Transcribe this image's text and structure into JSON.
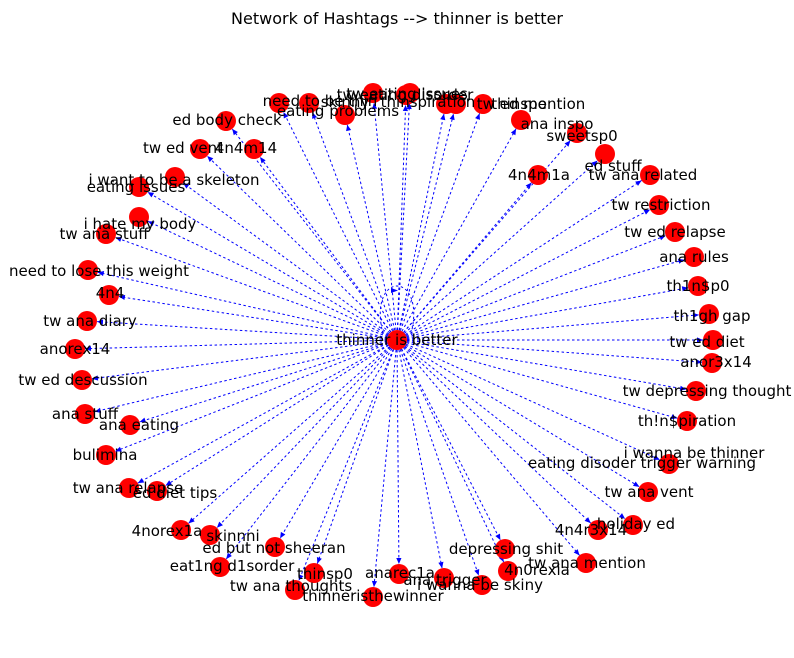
{
  "title": "Network of Hashtags --> thinner is better",
  "center": "thinner is better",
  "nodes": [
    "tw eating issues",
    "tw ed mention",
    "thinspo",
    "ana inspo",
    "sweetsp0",
    "ed stuff",
    "tw ana related",
    "4n4m1a",
    "tw restriction",
    "tw ed relapse",
    "ana rules",
    "th1n$p0",
    "th1gh gap",
    "tw ed diet",
    "anor3x14",
    "tw depressing thought",
    "th!n$piration",
    "i wanna be thinner",
    "eating disoder trigger warning",
    "tw ana vent",
    "holiday ed",
    "4n4r3x14",
    "tw ana mention",
    "4n0rexia",
    "i wanna be skiny",
    "depressing shit",
    "ana trigger",
    "anarec1a",
    "thinsp0",
    "thinneristhewinner",
    "tw ana thoughts",
    "eat1ng d1sorder",
    "ed but not sheeran",
    "skinnni",
    "4norex1a",
    "ed diet tips",
    "tw ana relapse",
    "bulimina",
    "ana eating",
    "ana stuff",
    "tw ed descussion",
    "anorex14",
    "tw ana diary",
    "4n4",
    "need to lose this weight",
    "tw ana stuff",
    "i hate my body",
    "eating issues",
    "i want to be a skeleton",
    "4n4m14",
    "tw ed vent",
    "ed body check",
    "skinny",
    "need to be thin",
    "eating problems",
    "tw eating disorder",
    "thinspiration"
  ]
}
